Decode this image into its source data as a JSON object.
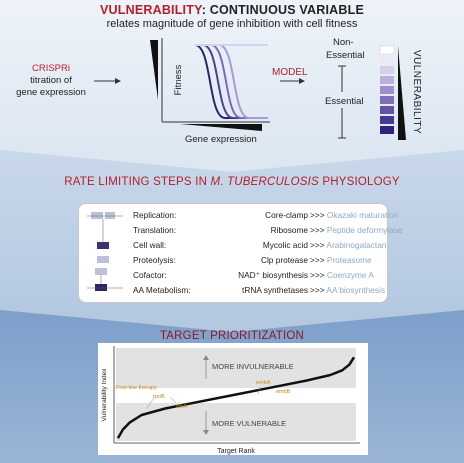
{
  "colors": {
    "accent_red": "#b3202a",
    "curve_purple": "#5b4a9e",
    "light_blue_text": "#8fa8c8",
    "orange_annotation": "#c98a1e"
  },
  "header": {
    "title_red": "VULNERABILITY",
    "title_dark": ": CONTINUOUS VARIABLE",
    "subtitle": "relates magnitude of gene inhibition with cell fitness"
  },
  "concept": {
    "crispri": "CRISPRi",
    "crispri_text_1": "titration of",
    "crispri_text_2": "gene expression",
    "fitness_label": "Fitness",
    "gene_expression_label": "Gene expression",
    "model_label": "MODEL",
    "non_essential_1": "Non-",
    "non_essential_2": "Essential",
    "essential": "Essential",
    "vulnerability_label": "VULNERABILITY"
  },
  "rate_limiting": {
    "title_prefix": "RATE LIMITING STEPS IN ",
    "title_italic": "M. TUBERCULOSIS",
    "title_suffix": " PHYSIOLOGY",
    "arrow_symbol": ">>>",
    "rows": [
      {
        "process": "Replication:",
        "step": "Core-clamp",
        "target": "Okazaki maturation"
      },
      {
        "process": "Translation:",
        "step": "Ribosome",
        "target": "Peptide deformylase"
      },
      {
        "process": "Cell wall:",
        "step": "Mycolic acid",
        "target": "Arabinogalactan"
      },
      {
        "process": "Proteolysis:",
        "step": "Clp protease",
        "target": "Proteasome"
      },
      {
        "process": "Cofactor:",
        "step": "NAD⁺ biosynthesis",
        "target": "Coenzyme A"
      },
      {
        "process": "AA Metabolism:",
        "step": "tRNA synthetases",
        "target": "AA biosynthesis"
      }
    ]
  },
  "prioritization": {
    "title": "TARGET PRIORITIZATION",
    "ylabel": "Vulnerability Index",
    "xlabel": "Target Rank",
    "more_invulnerable": "MORE INVULNERABLE",
    "more_vulnerable": "MORE VULNERABLE",
    "annotations": [
      "First-line therapy",
      "rpoB",
      "inhA",
      "embA",
      "embB"
    ]
  },
  "chart_data": {
    "type": "line",
    "title": "",
    "xlabel": "Target Rank",
    "ylabel": "Vulnerability Index",
    "x": [
      0,
      0.02,
      0.05,
      0.1,
      0.2,
      0.3,
      0.4,
      0.5,
      0.6,
      0.7,
      0.8,
      0.9,
      0.95,
      0.98,
      1
    ],
    "y": [
      0.03,
      0.12,
      0.2,
      0.28,
      0.35,
      0.4,
      0.45,
      0.5,
      0.55,
      0.6,
      0.65,
      0.71,
      0.76,
      0.82,
      0.9
    ],
    "ylim": [
      0,
      1
    ],
    "grid": false
  }
}
